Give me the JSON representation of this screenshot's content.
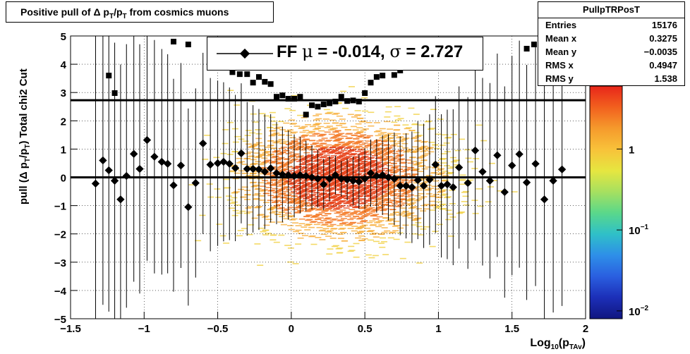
{
  "title": {
    "prefix": "Positive pull of ",
    "delta": "Δ",
    "p": "p",
    "sub1": "T",
    "slash": "/p",
    "sub2": "T",
    "suffix": " from cosmics muons"
  },
  "stats": {
    "name": "PullpTRPosT",
    "rows": [
      {
        "label": "Entries",
        "value": "15176"
      },
      {
        "label": "Mean x",
        "value": "0.3275"
      },
      {
        "label": "Mean y",
        "value": "−0.0035"
      },
      {
        "label": "RMS x",
        "value": "0.4947"
      },
      {
        "label": "RMS y",
        "value": "1.538"
      }
    ]
  },
  "fit": {
    "label": "FF",
    "mu_sym": "μ",
    "mu_text": " = -0.014, ",
    "sigma_sym": "σ",
    "sigma_text": " =   2.727"
  },
  "axes": {
    "ylabel": {
      "pre": "pull (Δ p",
      "s1": "T",
      "mid": "/p",
      "s2": "T",
      "post": ")  Total chi2 Cut"
    },
    "xlabel": {
      "pre": "Log",
      "s1": "10",
      "mid": "(p",
      "s2": "TAv",
      "post": ")"
    }
  },
  "chart_data": {
    "type": "scatter",
    "xlim": [
      -1.5,
      2
    ],
    "ylim": [
      -5,
      5
    ],
    "x_ticks": [
      {
        "v": -1.5,
        "label": "−1.5"
      },
      {
        "v": -1,
        "label": "−1"
      },
      {
        "v": -0.5,
        "label": "−0.5"
      },
      {
        "v": 0,
        "label": "0"
      },
      {
        "v": 0.5,
        "label": "0.5"
      },
      {
        "v": 1,
        "label": "1"
      },
      {
        "v": 1.5,
        "label": "1.5"
      },
      {
        "v": 2,
        "label": "2"
      }
    ],
    "y_ticks": [
      {
        "v": -5,
        "label": "−5"
      },
      {
        "v": -4,
        "label": "−4"
      },
      {
        "v": -3,
        "label": "−3"
      },
      {
        "v": -2,
        "label": "−2"
      },
      {
        "v": -1,
        "label": "−1"
      },
      {
        "v": 0,
        "label": "0"
      },
      {
        "v": 1,
        "label": "1"
      },
      {
        "v": 2,
        "label": "2"
      },
      {
        "v": 3,
        "label": "3"
      },
      {
        "v": 4,
        "label": "4"
      },
      {
        "v": 5,
        "label": "5"
      }
    ],
    "grid": true,
    "colorbar": {
      "scale": "log",
      "range": [
        0.008,
        6
      ],
      "ticks": [
        {
          "v": 1,
          "label": "1"
        },
        {
          "v": 0.1,
          "label": "10−1"
        },
        {
          "v": 0.01,
          "label": "10−2"
        }
      ]
    },
    "horizontal_lines": [
      0,
      2.727
    ],
    "mean_points": [
      [
        -1.33,
        -0.22
      ],
      [
        -1.28,
        0.6
      ],
      [
        -1.24,
        0.25
      ],
      [
        -1.2,
        -0.12
      ],
      [
        -1.16,
        -0.78
      ],
      [
        -1.12,
        0.05
      ],
      [
        -1.07,
        0.83
      ],
      [
        -1.03,
        0.3
      ],
      [
        -0.98,
        1.32
      ],
      [
        -0.93,
        0.73
      ],
      [
        -0.88,
        0.55
      ],
      [
        -0.84,
        0.48
      ],
      [
        -0.8,
        -0.28
      ],
      [
        -0.75,
        0.42
      ],
      [
        -0.7,
        -1.05
      ],
      [
        -0.65,
        -0.2
      ],
      [
        -0.6,
        1.2
      ],
      [
        -0.55,
        0.45
      ],
      [
        -0.5,
        0.5
      ],
      [
        -0.46,
        0.55
      ],
      [
        -0.42,
        0.48
      ],
      [
        -0.38,
        0.33
      ],
      [
        -0.34,
        0.85
      ],
      [
        -0.3,
        0.3
      ],
      [
        -0.26,
        0.3
      ],
      [
        -0.22,
        0.28
      ],
      [
        -0.18,
        0.2
      ],
      [
        -0.14,
        0.32
      ],
      [
        -0.1,
        0.15
      ],
      [
        -0.06,
        0.1
      ],
      [
        -0.02,
        0.08
      ],
      [
        0.02,
        0.05
      ],
      [
        0.06,
        0.08
      ],
      [
        0.1,
        0.05
      ],
      [
        0.14,
        0.0
      ],
      [
        0.18,
        -0.05
      ],
      [
        0.22,
        -0.25
      ],
      [
        0.26,
        -0.05
      ],
      [
        0.3,
        0.08
      ],
      [
        0.34,
        -0.05
      ],
      [
        0.38,
        -0.08
      ],
      [
        0.42,
        -0.12
      ],
      [
        0.46,
        -0.15
      ],
      [
        0.5,
        -0.05
      ],
      [
        0.54,
        0.15
      ],
      [
        0.58,
        0.05
      ],
      [
        0.62,
        0.08
      ],
      [
        0.66,
        0.0
      ],
      [
        0.7,
        -0.05
      ],
      [
        0.74,
        -0.3
      ],
      [
        0.78,
        -0.3
      ],
      [
        0.82,
        -0.35
      ],
      [
        0.86,
        -0.1
      ],
      [
        0.9,
        -0.3
      ],
      [
        0.94,
        -0.08
      ],
      [
        0.98,
        0.45
      ],
      [
        1.02,
        -0.3
      ],
      [
        1.06,
        -0.25
      ],
      [
        1.1,
        -0.35
      ],
      [
        1.14,
        0.35
      ],
      [
        1.2,
        -0.2
      ],
      [
        1.25,
        0.95
      ],
      [
        1.3,
        0.2
      ],
      [
        1.35,
        -0.12
      ],
      [
        1.4,
        0.78
      ],
      [
        1.45,
        -0.52
      ],
      [
        1.5,
        0.42
      ],
      [
        1.55,
        0.82
      ],
      [
        1.6,
        -0.18
      ],
      [
        1.66,
        0.48
      ],
      [
        1.72,
        -0.78
      ],
      [
        1.78,
        -0.12
      ],
      [
        1.84,
        0.28
      ]
    ],
    "rms_points": [
      [
        -1.24,
        3.6
      ],
      [
        -1.2,
        2.98
      ],
      [
        -0.8,
        4.8
      ],
      [
        -0.7,
        4.7
      ],
      [
        -0.4,
        3.72
      ],
      [
        -0.35,
        3.65
      ],
      [
        -0.3,
        3.65
      ],
      [
        -0.26,
        3.35
      ],
      [
        -0.22,
        3.55
      ],
      [
        -0.18,
        3.38
      ],
      [
        -0.14,
        3.3
      ],
      [
        -0.1,
        2.85
      ],
      [
        -0.06,
        2.9
      ],
      [
        -0.02,
        2.78
      ],
      [
        0.02,
        2.78
      ],
      [
        0.06,
        2.85
      ],
      [
        0.1,
        2.22
      ],
      [
        0.14,
        2.55
      ],
      [
        0.18,
        2.5
      ],
      [
        0.22,
        2.58
      ],
      [
        0.26,
        2.62
      ],
      [
        0.3,
        2.68
      ],
      [
        0.34,
        2.85
      ],
      [
        0.38,
        2.7
      ],
      [
        0.42,
        2.72
      ],
      [
        0.46,
        2.68
      ],
      [
        0.5,
        2.98
      ],
      [
        0.54,
        3.35
      ],
      [
        0.58,
        3.55
      ],
      [
        0.62,
        3.6
      ],
      [
        0.7,
        3.62
      ],
      [
        0.74,
        3.78
      ],
      [
        1.6,
        4.55
      ],
      [
        1.65,
        4.7
      ]
    ]
  }
}
